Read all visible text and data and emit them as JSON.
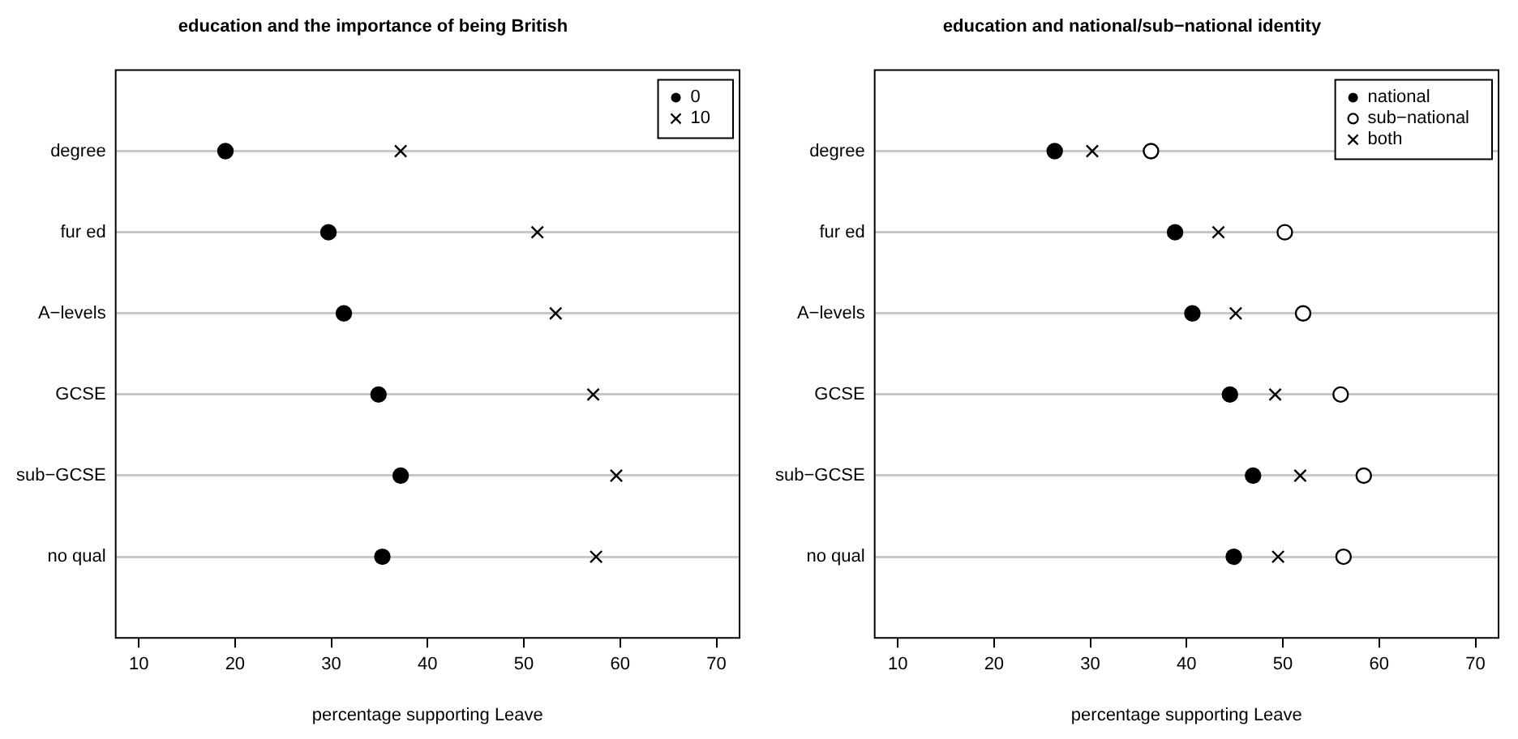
{
  "chart_data": [
    {
      "type": "scatter",
      "title": "education and the importance of being British",
      "xlabel": "percentage supporting Leave",
      "orientation": "horizontal",
      "categories": [
        "degree",
        "fur ed",
        "A−levels",
        "GCSE",
        "sub−GCSE",
        "no qual"
      ],
      "xlim": [
        7.6,
        72.4
      ],
      "xticks": [
        10,
        20,
        30,
        40,
        50,
        60,
        70
      ],
      "grid": "y",
      "legend": "top right",
      "series": [
        {
          "name": "0",
          "color": "#000000",
          "marker": "circle",
          "values": [
            19.0,
            29.7,
            31.3,
            34.9,
            37.2,
            35.3
          ]
        },
        {
          "name": "10",
          "color": "#000000",
          "marker": "cross",
          "values": [
            37.2,
            51.4,
            53.3,
            57.2,
            59.6,
            57.5
          ]
        }
      ]
    },
    {
      "type": "scatter",
      "title": "education and national/sub−national identity",
      "xlabel": "percentage supporting Leave",
      "orientation": "horizontal",
      "categories": [
        "degree",
        "fur ed",
        "A−levels",
        "GCSE",
        "sub−GCSE",
        "no qual"
      ],
      "xlim": [
        7.6,
        72.4
      ],
      "xticks": [
        10,
        20,
        30,
        40,
        50,
        60,
        70
      ],
      "grid": "y",
      "legend": "top right",
      "series": [
        {
          "name": "national",
          "color": "#000000",
          "marker": "circle",
          "values": [
            26.3,
            38.8,
            40.6,
            44.5,
            46.9,
            44.9
          ]
        },
        {
          "name": "sub−national",
          "color": "#000000",
          "marker": "open-circle",
          "values": [
            36.3,
            50.2,
            52.1,
            56.0,
            58.4,
            56.3
          ]
        },
        {
          "name": "both",
          "color": "#000000",
          "marker": "cross",
          "values": [
            30.2,
            43.3,
            45.1,
            49.2,
            51.8,
            49.5
          ]
        }
      ]
    }
  ]
}
